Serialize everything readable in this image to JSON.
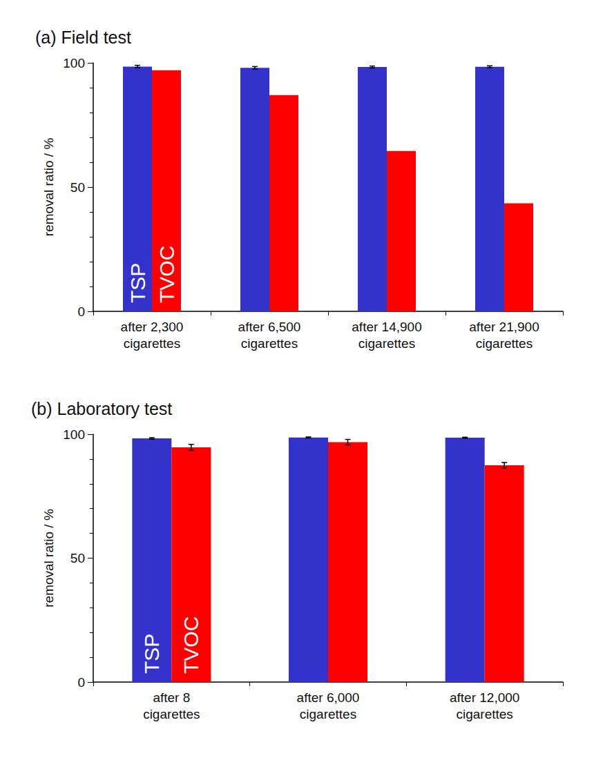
{
  "chart_data": [
    {
      "type": "bar",
      "title": "(a) Field test",
      "y_label": "removal ratio / %",
      "categories": [
        "after 2,300\ncigarettes",
        "after 6,500\ncigarettes",
        "after 14,900\ncigarettes",
        "after 21,900\ncigarettes"
      ],
      "series": [
        {
          "name": "TSP",
          "color": "#3333cc",
          "values": [
            98.5,
            98.0,
            98.3,
            98.4
          ],
          "errors": [
            0.5,
            0.5,
            0.4,
            0.4
          ]
        },
        {
          "name": "TVOC",
          "color": "#ff0000",
          "values": [
            97.0,
            87.0,
            64.5,
            43.5
          ]
        }
      ],
      "ylim": [
        0,
        100
      ],
      "yticks": [
        0,
        50,
        100
      ],
      "grid": false
    },
    {
      "type": "bar",
      "title": "(b) Laboratory test",
      "y_label": "removal ratio / %",
      "categories": [
        "after 8\ncigarettes",
        "after 6,000\ncigarettes",
        "after 12,000\ncigarettes"
      ],
      "series": [
        {
          "name": "TSP",
          "color": "#3333cc",
          "values": [
            98.3,
            98.7,
            98.6
          ],
          "errors": [
            0.3,
            0.2,
            0.2
          ]
        },
        {
          "name": "TVOC",
          "color": "#ff0000",
          "values": [
            94.7,
            96.8,
            87.5
          ],
          "errors": [
            1.2,
            1.1,
            1.1
          ]
        }
      ],
      "ylim": [
        0,
        100
      ],
      "yticks": [
        0,
        50,
        100
      ],
      "grid": false
    }
  ]
}
